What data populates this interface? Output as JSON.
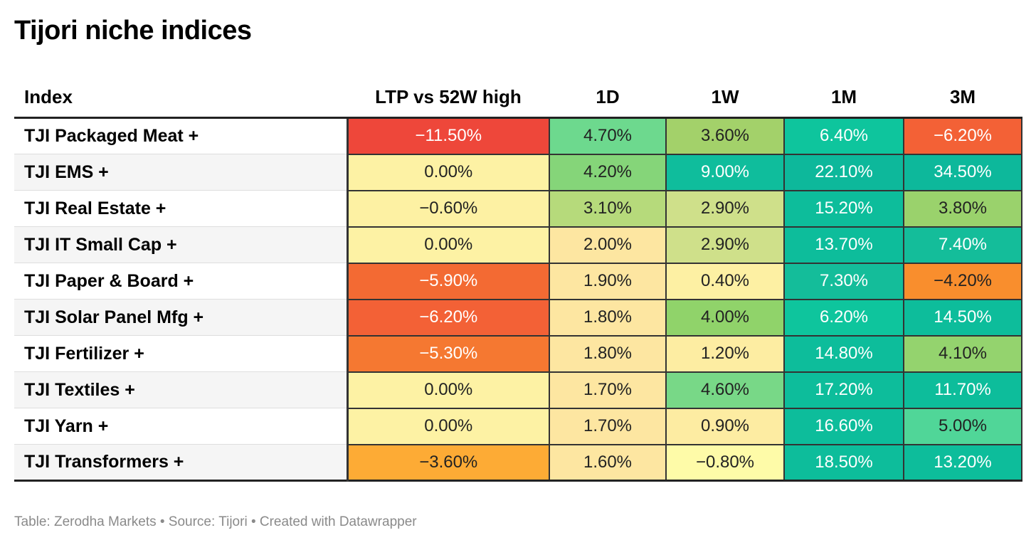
{
  "title": "Tijori niche indices",
  "footer": "Table: Zerodha Markets • Source: Tijori • Created with Datawrapper",
  "chart_data": {
    "type": "table",
    "columns": [
      "Index",
      "LTP vs 52W high",
      "1D",
      "1W",
      "1M",
      "3M"
    ],
    "rows": [
      {
        "name": "TJI Packaged Meat +",
        "values": [
          "−11.50%",
          "4.70%",
          "3.60%",
          "6.40%",
          "−6.20%"
        ],
        "colors": [
          "#ee473a",
          "#6dd98e",
          "#a3d16a",
          "#0ec59d",
          "#f36136"
        ]
      },
      {
        "name": "TJI EMS +",
        "values": [
          "0.00%",
          "4.20%",
          "9.00%",
          "22.10%",
          "34.50%"
        ],
        "colors": [
          "#fdf2a4",
          "#85d579",
          "#0fbd9c",
          "#0db89b",
          "#0db89b"
        ]
      },
      {
        "name": "TJI Real Estate +",
        "values": [
          "−0.60%",
          "3.10%",
          "2.90%",
          "15.20%",
          "3.80%"
        ],
        "colors": [
          "#fdf1a3",
          "#b6da7b",
          "#cfe08a",
          "#0dbd9b",
          "#9ad26c"
        ]
      },
      {
        "name": "TJI IT Small Cap +",
        "values": [
          "0.00%",
          "2.00%",
          "2.90%",
          "13.70%",
          "7.40%"
        ],
        "colors": [
          "#fdf2a4",
          "#fde6a1",
          "#cfe08a",
          "#0dbd9b",
          "#14bd9a"
        ]
      },
      {
        "name": "TJI Paper & Board +",
        "values": [
          "−5.90%",
          "1.90%",
          "0.40%",
          "7.30%",
          "−4.20%"
        ],
        "colors": [
          "#f36a33",
          "#fde6a1",
          "#fdf0a3",
          "#14bd9a",
          "#f98e2d"
        ]
      },
      {
        "name": "TJI Solar Panel Mfg +",
        "values": [
          "−6.20%",
          "1.80%",
          "4.00%",
          "6.20%",
          "14.50%"
        ],
        "colors": [
          "#f36136",
          "#fde6a1",
          "#90d36a",
          "#0ec59d",
          "#0dbd9b"
        ]
      },
      {
        "name": "TJI Fertilizer +",
        "values": [
          "−5.30%",
          "1.80%",
          "1.20%",
          "14.80%",
          "4.10%"
        ],
        "colors": [
          "#f57831",
          "#fde6a1",
          "#fdeda2",
          "#0dbd9b",
          "#94d36e"
        ]
      },
      {
        "name": "TJI Textiles +",
        "values": [
          "0.00%",
          "1.70%",
          "4.60%",
          "17.20%",
          "11.70%"
        ],
        "colors": [
          "#fdf2a4",
          "#fde6a1",
          "#78d887",
          "#0dbd9b",
          "#0dbd9b"
        ]
      },
      {
        "name": "TJI Yarn +",
        "values": [
          "0.00%",
          "1.70%",
          "0.90%",
          "16.60%",
          "5.00%"
        ],
        "colors": [
          "#fdf2a4",
          "#fde6a1",
          "#fdeca2",
          "#0dbd9b",
          "#50d698"
        ]
      },
      {
        "name": "TJI Transformers +",
        "values": [
          "−3.60%",
          "1.60%",
          "−0.80%",
          "18.50%",
          "13.20%"
        ],
        "colors": [
          "#fdab35",
          "#fde6a1",
          "#fefba8",
          "#0dbd9b",
          "#0dbd9b"
        ]
      }
    ],
    "light_text_color": "#ffffff",
    "dark_text_color": "#222222"
  }
}
